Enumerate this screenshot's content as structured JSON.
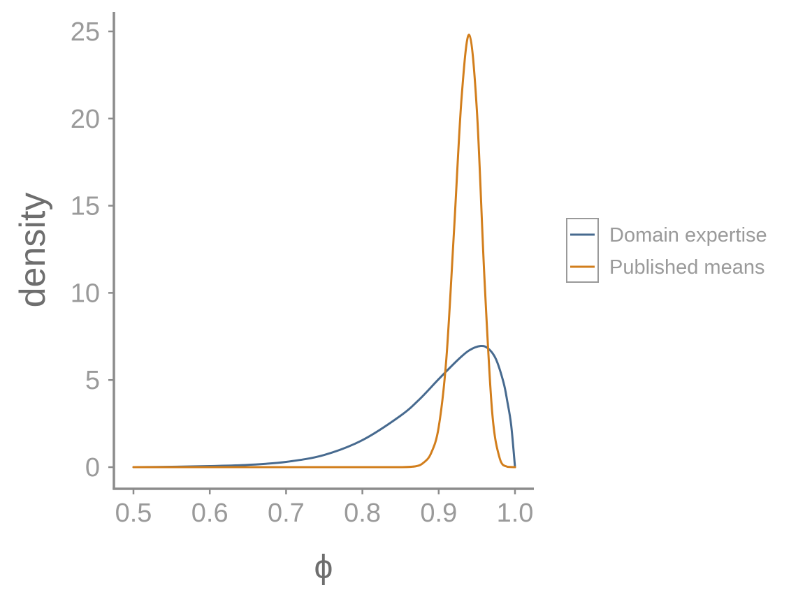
{
  "chart_data": {
    "type": "line",
    "title": "",
    "xlabel": "ϕ",
    "ylabel": "density",
    "xlim": [
      0.5,
      1.0
    ],
    "ylim": [
      0,
      25
    ],
    "xticks": [
      0.5,
      0.6,
      0.7,
      0.8,
      0.9,
      1.0
    ],
    "xtick_labels": [
      "0.5",
      "0.6",
      "0.7",
      "0.8",
      "0.9",
      "1.0"
    ],
    "yticks": [
      0,
      5,
      10,
      15,
      20,
      25
    ],
    "ytick_labels": [
      "0",
      "5",
      "10",
      "15",
      "20",
      "25"
    ],
    "grid": false,
    "legend_position": "right",
    "series": [
      {
        "name": "Domain expertise",
        "color": "#476a8f",
        "x": [
          0.5,
          0.55,
          0.6,
          0.65,
          0.7,
          0.75,
          0.8,
          0.85,
          0.875,
          0.9,
          0.925,
          0.94,
          0.955,
          0.965,
          0.975,
          0.985,
          0.99,
          0.995,
          1.0
        ],
        "y": [
          0.0,
          0.02,
          0.06,
          0.13,
          0.3,
          0.7,
          1.55,
          2.95,
          3.9,
          5.05,
          6.15,
          6.7,
          6.95,
          6.8,
          6.2,
          4.85,
          3.75,
          2.4,
          0.0
        ]
      },
      {
        "name": "Published means",
        "color": "#d27e1c",
        "x": [
          0.5,
          0.8,
          0.85,
          0.87,
          0.88,
          0.89,
          0.9,
          0.91,
          0.92,
          0.93,
          0.94,
          0.95,
          0.96,
          0.97,
          0.98,
          0.99,
          1.0
        ],
        "y": [
          0.0,
          0.0,
          0.0,
          0.05,
          0.25,
          0.8,
          2.3,
          6.2,
          13.5,
          21.2,
          24.8,
          20.5,
          10.8,
          3.2,
          0.5,
          0.02,
          0.0
        ]
      }
    ]
  }
}
